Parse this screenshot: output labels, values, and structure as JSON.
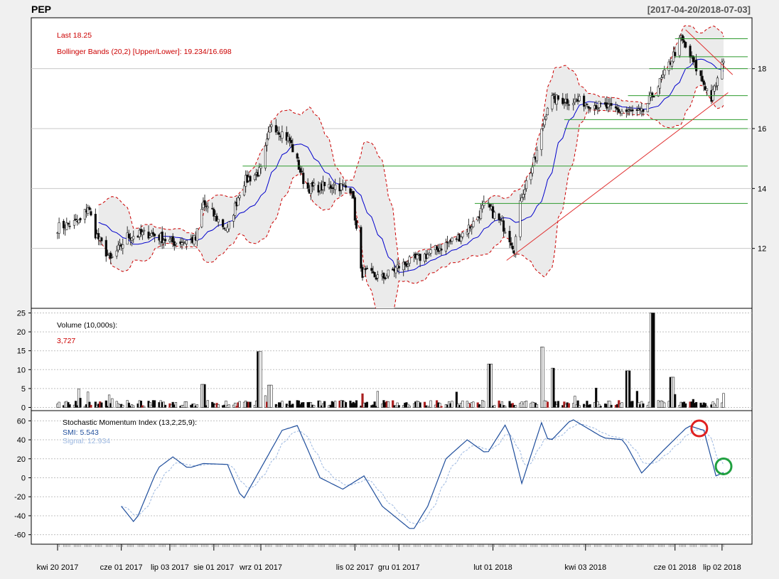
{
  "header": {
    "symbol": "PEP",
    "date_range": "[2017-04-20/2018-07-03]"
  },
  "price_panel": {
    "last_label": "Last 18.25",
    "bbands_label": "Bollinger Bands (20,2) [Upper/Lower]: 19.234/16.698",
    "y_ticks": [
      "12",
      "14",
      "16",
      "18"
    ]
  },
  "volume_panel": {
    "title": "Volume (10,000s):",
    "last_value": "3,727",
    "y_ticks": [
      "0",
      "5",
      "10",
      "15",
      "20",
      "25"
    ]
  },
  "smi_panel": {
    "title": "Stochastic Momentum Index (13,2,25,9):",
    "smi_label": "SMI: 5.543",
    "signal_label": "Signal: 12.934",
    "y_ticks": [
      "-60",
      "-40",
      "-20",
      "0",
      "20",
      "40",
      "60"
    ]
  },
  "x_axis": {
    "labels": [
      "kwi 20 2017",
      "cze 01 2017",
      "lip 03 2017",
      "sie 01 2017",
      "wrz 01 2017",
      "lis 02 2017",
      "gru 01 2017",
      "lut 01 2018",
      "kwi 03 2018",
      "cze 01 2018",
      "lip 02 2018"
    ]
  },
  "colors": {
    "up_candle": "#ffffff",
    "down_candle": "#000000",
    "bbands_band": "#cc0000",
    "bbands_ma": "#0000cc",
    "smi": "#1f4e9c",
    "signal": "#9bb7e0",
    "support_lines": "#2e9b2e",
    "trend_lines": "#e03030",
    "marker_red": "#e02020",
    "marker_green": "#20a040"
  },
  "chart_data": {
    "type": "candlestick",
    "x_range": [
      "2017-04-20",
      "2018-07-03"
    ],
    "price": {
      "ylim": [
        10.0,
        19.7
      ],
      "close_anchors": [
        [
          "2017-04-20",
          12.7
        ],
        [
          "2017-05-05",
          12.9
        ],
        [
          "2017-05-10",
          13.4
        ],
        [
          "2017-05-15",
          12.5
        ],
        [
          "2017-05-25",
          11.6
        ],
        [
          "2017-06-05",
          12.4
        ],
        [
          "2017-06-20",
          12.5
        ],
        [
          "2017-07-05",
          12.2
        ],
        [
          "2017-07-20",
          12.3
        ],
        [
          "2017-07-25",
          13.5
        ],
        [
          "2017-08-10",
          12.6
        ],
        [
          "2017-08-20",
          14.2
        ],
        [
          "2017-09-01",
          14.6
        ],
        [
          "2017-09-08",
          16.2
        ],
        [
          "2017-09-20",
          15.6
        ],
        [
          "2017-10-01",
          14.0
        ],
        [
          "2017-10-20",
          14.1
        ],
        [
          "2017-10-31",
          14.0
        ],
        [
          "2017-11-06",
          11.2
        ],
        [
          "2017-11-20",
          11.0
        ],
        [
          "2017-12-01",
          11.4
        ],
        [
          "2017-12-20",
          11.8
        ],
        [
          "2018-01-10",
          12.4
        ],
        [
          "2018-01-20",
          12.9
        ],
        [
          "2018-01-27",
          13.5
        ],
        [
          "2018-02-10",
          12.6
        ],
        [
          "2018-02-15",
          12.0
        ],
        [
          "2018-02-20",
          13.8
        ],
        [
          "2018-03-01",
          15.0
        ],
        [
          "2018-03-10",
          17.0
        ],
        [
          "2018-04-01",
          16.9
        ],
        [
          "2018-04-25",
          16.6
        ],
        [
          "2018-05-10",
          16.5
        ],
        [
          "2018-05-25",
          17.8
        ],
        [
          "2018-06-05",
          19.0
        ],
        [
          "2018-06-20",
          17.5
        ],
        [
          "2018-06-25",
          17.0
        ],
        [
          "2018-07-03",
          18.25
        ]
      ],
      "last": 18.25,
      "bbands_upper": 19.234,
      "bbands_lower": 16.698,
      "support_levels": [
        {
          "value": 14.75,
          "from": "2017-08-20"
        },
        {
          "value": 13.5,
          "from": "2018-01-20"
        },
        {
          "value": 16.0,
          "from": "2018-03-20"
        },
        {
          "value": 16.3,
          "from": "2018-03-20"
        },
        {
          "value": 17.1,
          "from": "2018-05-01"
        },
        {
          "value": 18.0,
          "from": "2018-05-15"
        },
        {
          "value": 18.4,
          "from": "2018-06-01"
        },
        {
          "value": 19.0,
          "from": "2018-06-01"
        }
      ],
      "trend_lines": [
        {
          "from": [
            "2018-02-10",
            11.6
          ],
          "to": [
            "2018-07-06",
            17.2
          ]
        },
        {
          "from": [
            "2018-06-08",
            19.3
          ],
          "to": [
            "2018-07-09",
            17.8
          ]
        }
      ]
    },
    "volume": {
      "ylim": [
        0,
        26
      ],
      "unit": "10,000s",
      "last": 3727,
      "spikes": [
        [
          "2017-08-31",
          14.8
        ],
        [
          "2017-09-07",
          5.9
        ],
        [
          "2017-07-25",
          6.1
        ],
        [
          "2018-01-30",
          11.5
        ],
        [
          "2018-03-05",
          16.0
        ],
        [
          "2018-03-12",
          10.4
        ],
        [
          "2018-05-01",
          9.7
        ],
        [
          "2018-05-17",
          25.0
        ],
        [
          "2018-05-30",
          8.0
        ]
      ]
    },
    "smi": {
      "ylim": [
        -66,
        66
      ],
      "last_smi": 5.543,
      "last_signal": 12.934,
      "anchors": [
        [
          "2017-06-01",
          -30
        ],
        [
          "2017-06-10",
          -48
        ],
        [
          "2017-06-25",
          10
        ],
        [
          "2017-07-05",
          22
        ],
        [
          "2017-07-15",
          10
        ],
        [
          "2017-07-25",
          15
        ],
        [
          "2017-08-10",
          14
        ],
        [
          "2017-08-20",
          -24
        ],
        [
          "2017-09-01",
          10
        ],
        [
          "2017-09-15",
          50
        ],
        [
          "2017-09-25",
          55
        ],
        [
          "2017-10-10",
          0
        ],
        [
          "2017-10-25",
          -12
        ],
        [
          "2017-11-08",
          2
        ],
        [
          "2017-11-20",
          -30
        ],
        [
          "2017-12-10",
          -56
        ],
        [
          "2017-12-20",
          -30
        ],
        [
          "2018-01-01",
          20
        ],
        [
          "2018-01-15",
          40
        ],
        [
          "2018-01-28",
          25
        ],
        [
          "2018-02-10",
          58
        ],
        [
          "2018-02-20",
          -6
        ],
        [
          "2018-03-05",
          58
        ],
        [
          "2018-03-10",
          37
        ],
        [
          "2018-03-25",
          62
        ],
        [
          "2018-04-15",
          42
        ],
        [
          "2018-04-28",
          40
        ],
        [
          "2018-05-10",
          5
        ],
        [
          "2018-05-25",
          30
        ],
        [
          "2018-06-10",
          55
        ],
        [
          "2018-06-20",
          50
        ],
        [
          "2018-06-28",
          2
        ],
        [
          "2018-07-03",
          5.5
        ]
      ]
    }
  }
}
